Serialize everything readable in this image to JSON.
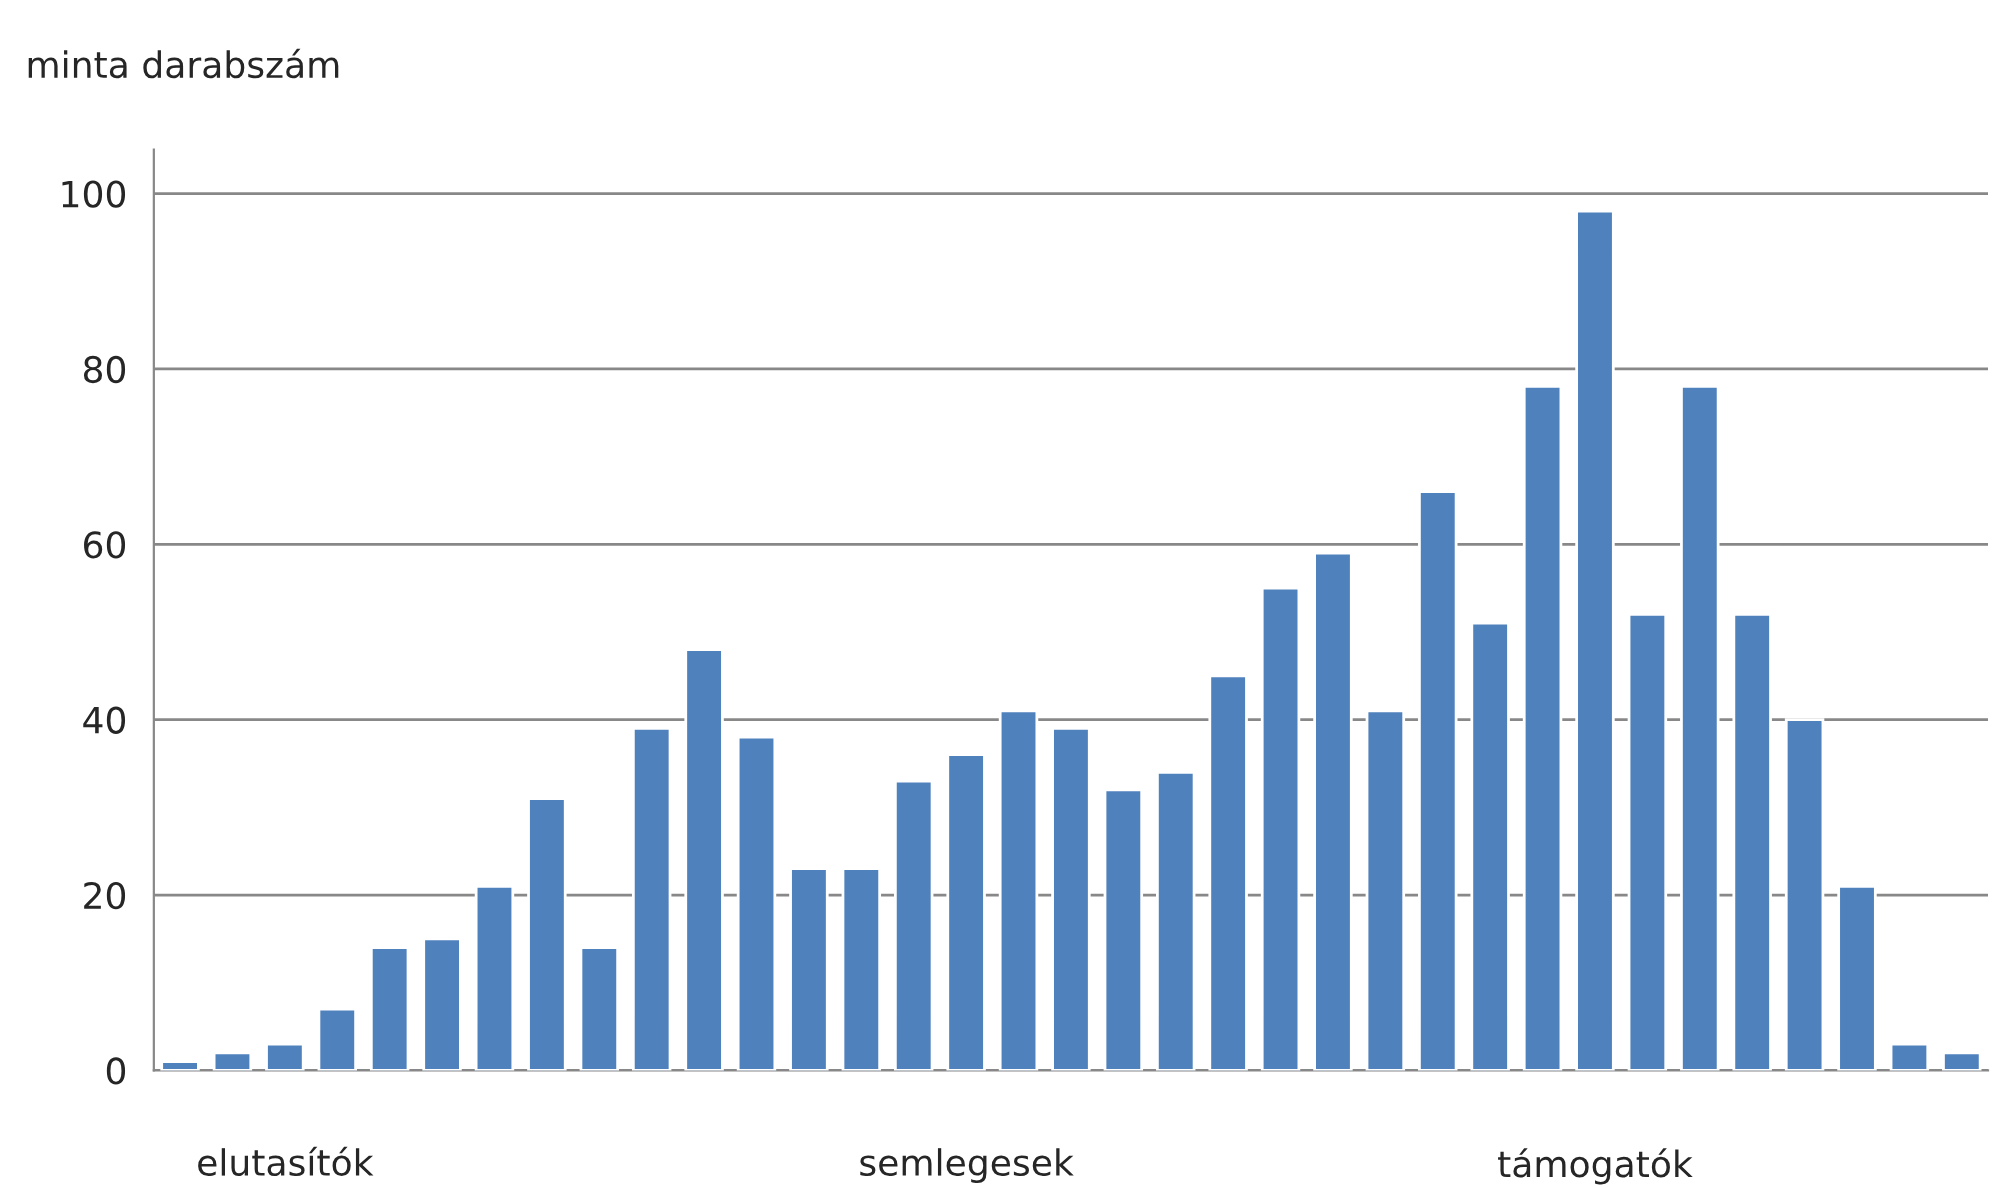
{
  "chart_data": {
    "type": "bar",
    "ylabel": "minta darabszám",
    "categories": [
      null,
      null,
      "elutasítók",
      null,
      null,
      null,
      null,
      null,
      null,
      null,
      null,
      null,
      null,
      null,
      null,
      "semlegesek",
      null,
      null,
      null,
      null,
      null,
      null,
      null,
      null,
      null,
      null,
      null,
      "támogatók",
      null,
      null,
      null,
      null,
      null,
      null,
      null
    ],
    "values": [
      1,
      2,
      3,
      7,
      14,
      15,
      21,
      31,
      14,
      39,
      48,
      38,
      23,
      23,
      33,
      36,
      41,
      39,
      32,
      34,
      45,
      55,
      59,
      41,
      66,
      51,
      78,
      98,
      52,
      78,
      52,
      40,
      21,
      3,
      2
    ],
    "color": "#4f81bd",
    "ylim": [
      0,
      105
    ],
    "yticks": [
      0,
      20,
      40,
      60,
      80,
      100
    ],
    "grid": "y",
    "legend": false
  }
}
